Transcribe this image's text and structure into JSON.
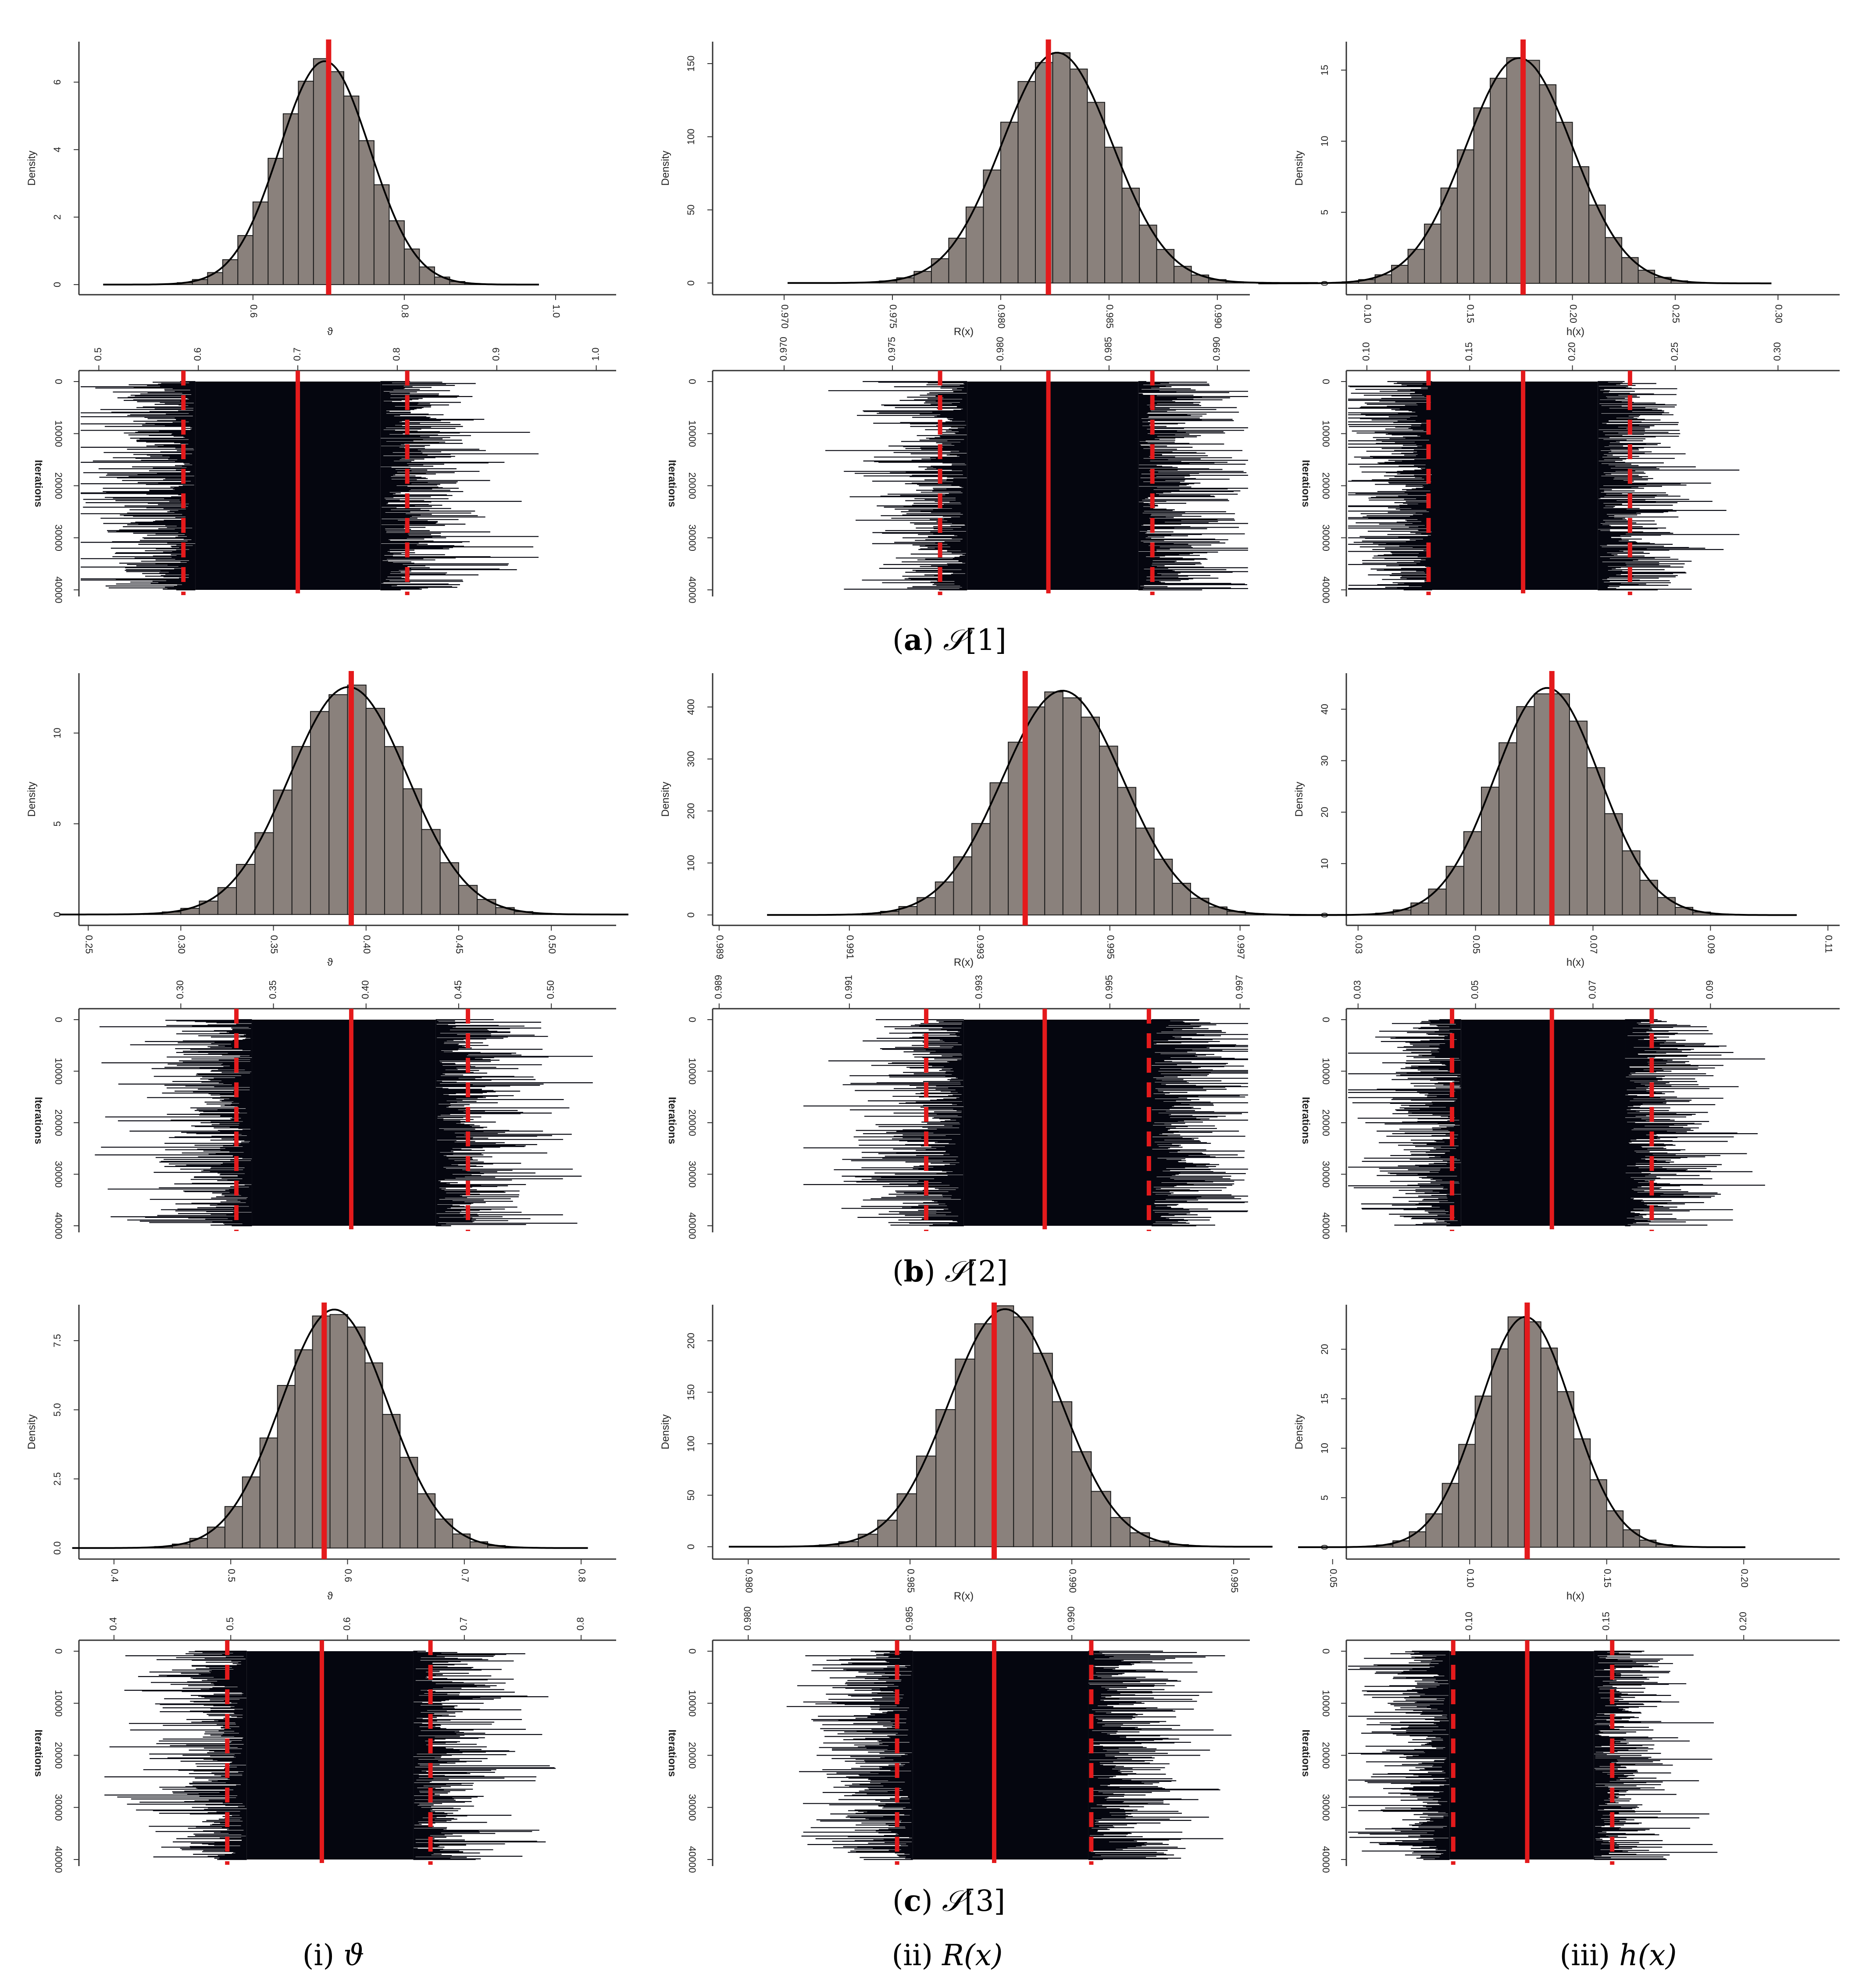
{
  "colors": {
    "bar_fill": "#8a817c",
    "bar_stroke": "#1a1a1a",
    "density_line": "#000000",
    "estimate_line": "#e41a1c",
    "trace_fill": "#05060f"
  },
  "row_captions": [
    {
      "letter": "a",
      "symbol": "𝒮",
      "index": "[1]"
    },
    {
      "letter": "b",
      "symbol": "𝒮",
      "index": "[2]"
    },
    {
      "letter": "c",
      "symbol": "𝒮",
      "index": "[3]"
    }
  ],
  "column_captions": [
    {
      "roman": "i",
      "symbol": "ϑ"
    },
    {
      "roman": "ii",
      "symbol": "R(x)"
    },
    {
      "roman": "iii",
      "symbol": "h(x)"
    }
  ],
  "chart_data": [
    {
      "panel": "a-i",
      "type": "bar",
      "histogram_with_density": true,
      "xlabel": "ϑ",
      "ylabel": "Density",
      "xlim": [
        0.37,
        1.08
      ],
      "ylim": [
        -0.3,
        7.2
      ],
      "xticks": [
        0.6,
        0.8,
        1.0
      ],
      "xtick_labels": [
        "0.6",
        "0.8",
        "1.0"
      ],
      "yticks": [
        0,
        2,
        4,
        6
      ],
      "ytick_labels": [
        "0",
        "2",
        "4",
        "6"
      ],
      "mean": 0.69,
      "sd": 0.06,
      "peak": 6.6,
      "bin_width": 0.02,
      "estimate": 0.7,
      "trace": {
        "xlim": [
          0.48,
          1.02
        ],
        "xticks": [
          0.5,
          0.6,
          0.7,
          0.8,
          0.9,
          1.0
        ],
        "xtick_labels": [
          "0.5",
          "0.6",
          "0.7",
          "0.8",
          "0.9",
          "1.0"
        ],
        "ylabel": "Iterations",
        "ylim": [
          0,
          40000
        ],
        "yticks": [
          0,
          10000,
          20000,
          30000,
          40000
        ],
        "ytick_labels": [
          "0",
          "10000",
          "20000",
          "30000",
          "40000"
        ],
        "estimate": 0.7,
        "lower": 0.585,
        "upper": 0.81
      }
    },
    {
      "panel": "a-ii",
      "type": "bar",
      "histogram_with_density": true,
      "xlabel": "R(x)",
      "ylabel": "Density",
      "xlim": [
        0.9667,
        0.9915
      ],
      "ylim": [
        -8,
        165
      ],
      "xticks": [
        0.97,
        0.975,
        0.98,
        0.985,
        0.99
      ],
      "xtick_labels": [
        "0.970",
        "0.975",
        "0.980",
        "0.985",
        "0.990"
      ],
      "yticks": [
        0,
        50,
        100,
        150
      ],
      "ytick_labels": [
        "0",
        "50",
        "100",
        "150"
      ],
      "mean": 0.9824,
      "sd": 0.00255,
      "peak": 157,
      "bin_width": 0.0008,
      "estimate": 0.9822,
      "trace": {
        "xlim": [
          0.9667,
          0.9915
        ],
        "xticks": [
          0.97,
          0.975,
          0.98,
          0.985,
          0.99
        ],
        "xtick_labels": [
          "0.970",
          "0.975",
          "0.980",
          "0.985",
          "0.990"
        ],
        "ylabel": "Iterations",
        "ylim": [
          0,
          40000
        ],
        "yticks": [
          0,
          10000,
          20000,
          30000,
          40000
        ],
        "ytick_labels": [
          "0",
          "10000",
          "20000",
          "30000",
          "40000"
        ],
        "estimate": 0.9822,
        "lower": 0.9772,
        "upper": 0.987
      }
    },
    {
      "panel": "a-iii",
      "type": "bar",
      "histogram_with_density": true,
      "xlabel": "h(x)",
      "ylabel": "Density",
      "xlim": [
        0.09,
        0.33
      ],
      "ylim": [
        -0.8,
        17
      ],
      "xticks": [
        0.1,
        0.15,
        0.2,
        0.25,
        0.3
      ],
      "xtick_labels": [
        "0.10",
        "0.15",
        "0.20",
        "0.25",
        "0.30"
      ],
      "yticks": [
        0,
        5,
        10,
        15
      ],
      "ytick_labels": [
        "0",
        "5",
        "10",
        "15"
      ],
      "mean": 0.172,
      "sd": 0.026,
      "peak": 15.8,
      "bin_width": 0.008,
      "estimate": 0.176,
      "trace": {
        "xlim": [
          0.09,
          0.33
        ],
        "xticks": [
          0.1,
          0.15,
          0.2,
          0.25,
          0.3
        ],
        "xtick_labels": [
          "0.10",
          "0.15",
          "0.20",
          "0.25",
          "0.30"
        ],
        "ylabel": "Iterations",
        "ylim": [
          0,
          40000
        ],
        "yticks": [
          0,
          10000,
          20000,
          30000,
          40000
        ],
        "ytick_labels": [
          "0",
          "10000",
          "20000",
          "30000",
          "40000"
        ],
        "estimate": 0.176,
        "lower": 0.13,
        "upper": 0.228
      }
    },
    {
      "panel": "b-i",
      "type": "bar",
      "histogram_with_density": true,
      "xlabel": "ϑ",
      "ylabel": "Density",
      "xlim": [
        0.245,
        0.535
      ],
      "ylim": [
        -0.6,
        13.3
      ],
      "xticks": [
        0.25,
        0.3,
        0.35,
        0.4,
        0.45,
        0.5
      ],
      "xtick_labels": [
        "0.25",
        "0.30",
        "0.35",
        "0.40",
        "0.45",
        "0.50"
      ],
      "yticks": [
        0,
        5,
        10
      ],
      "ytick_labels": [
        "0",
        "5",
        "10"
      ],
      "mean": 0.388,
      "sd": 0.032,
      "peak": 12.5,
      "bin_width": 0.01,
      "estimate": 0.392,
      "trace": {
        "xlim": [
          0.245,
          0.535
        ],
        "xticks": [
          0.3,
          0.35,
          0.4,
          0.45,
          0.5
        ],
        "xtick_labels": [
          "0.30",
          "0.35",
          "0.40",
          "0.45",
          "0.50"
        ],
        "ylabel": "Iterations",
        "ylim": [
          0,
          40000
        ],
        "yticks": [
          0,
          10000,
          20000,
          30000,
          40000
        ],
        "ytick_labels": [
          "0",
          "10000",
          "20000",
          "30000",
          "40000"
        ],
        "estimate": 0.392,
        "lower": 0.33,
        "upper": 0.455
      }
    },
    {
      "panel": "b-ii",
      "type": "bar",
      "histogram_with_density": true,
      "xlabel": "R(x)",
      "ylabel": "Density",
      "xlim": [
        0.9889,
        0.99715
      ],
      "ylim": [
        -20,
        465
      ],
      "xticks": [
        0.989,
        0.991,
        0.993,
        0.995,
        0.997
      ],
      "xtick_labels": [
        "0.989",
        "0.991",
        "0.993",
        "0.995",
        "0.997"
      ],
      "yticks": [
        0,
        100,
        200,
        300,
        400
      ],
      "ytick_labels": [
        "0",
        "100",
        "200",
        "300",
        "400"
      ],
      "mean": 0.9942,
      "sd": 0.00093,
      "peak": 430,
      "bin_width": 0.00028,
      "estimate": 0.9937,
      "trace": {
        "xlim": [
          0.9889,
          0.99715
        ],
        "xticks": [
          0.989,
          0.991,
          0.993,
          0.995,
          0.997
        ],
        "xtick_labels": [
          "0.989",
          "0.991",
          "0.993",
          "0.995",
          "0.997"
        ],
        "ylabel": "Iterations",
        "ylim": [
          0,
          40000
        ],
        "yticks": [
          0,
          10000,
          20000,
          30000,
          40000
        ],
        "ytick_labels": [
          "0",
          "10000",
          "20000",
          "30000",
          "40000"
        ],
        "estimate": 0.994,
        "lower": 0.99218,
        "upper": 0.9956
      }
    },
    {
      "panel": "b-iii",
      "type": "bar",
      "histogram_with_density": true,
      "xlabel": "h(x)",
      "ylabel": "Density",
      "xlim": [
        0.028,
        0.112
      ],
      "ylim": [
        -2,
        47
      ],
      "xticks": [
        0.03,
        0.05,
        0.07,
        0.09,
        0.11
      ],
      "xtick_labels": [
        "0.03",
        "0.05",
        "0.07",
        "0.09",
        "0.11"
      ],
      "yticks": [
        0,
        10,
        20,
        30,
        40
      ],
      "ytick_labels": [
        "0",
        "10",
        "20",
        "30",
        "40"
      ],
      "mean": 0.0615,
      "sd": 0.009,
      "peak": 44,
      "bin_width": 0.003,
      "estimate": 0.063,
      "trace": {
        "xlim": [
          0.028,
          0.112
        ],
        "xticks": [
          0.03,
          0.05,
          0.07,
          0.09
        ],
        "xtick_labels": [
          "0.03",
          "0.05",
          "0.07",
          "0.09"
        ],
        "ylabel": "Iterations",
        "ylim": [
          0,
          40000
        ],
        "yticks": [
          0,
          10000,
          20000,
          30000,
          40000
        ],
        "ytick_labels": [
          "0",
          "10000",
          "20000",
          "30000",
          "40000"
        ],
        "estimate": 0.063,
        "lower": 0.046,
        "upper": 0.08
      }
    },
    {
      "panel": "c-i",
      "type": "bar",
      "histogram_with_density": true,
      "xlabel": "ϑ",
      "ylabel": "Density",
      "xlim": [
        0.37,
        0.83
      ],
      "ylim": [
        -0.4,
        8.8
      ],
      "xticks": [
        0.4,
        0.5,
        0.6,
        0.7,
        0.8
      ],
      "xtick_labels": [
        "0.4",
        "0.5",
        "0.6",
        "0.7",
        "0.8"
      ],
      "yticks": [
        0,
        2.5,
        5,
        7.5
      ],
      "ytick_labels": [
        "0.0",
        "2.5",
        "5.0",
        "7.5"
      ],
      "mean": 0.585,
      "sd": 0.046,
      "peak": 8.6,
      "bin_width": 0.015,
      "estimate": 0.58,
      "trace": {
        "xlim": [
          0.37,
          0.83
        ],
        "xticks": [
          0.4,
          0.5,
          0.6,
          0.7,
          0.8
        ],
        "xtick_labels": [
          "0.4",
          "0.5",
          "0.6",
          "0.7",
          "0.8"
        ],
        "ylabel": "Iterations",
        "ylim": [
          0,
          40000
        ],
        "yticks": [
          0,
          10000,
          20000,
          30000,
          40000
        ],
        "ytick_labels": [
          "0",
          "10000",
          "20000",
          "30000",
          "40000"
        ],
        "estimate": 0.578,
        "lower": 0.497,
        "upper": 0.671
      }
    },
    {
      "panel": "c-ii",
      "type": "bar",
      "histogram_with_density": true,
      "xlabel": "R(x)",
      "ylabel": "Density",
      "xlim": [
        0.9789,
        0.9955
      ],
      "ylim": [
        -12,
        235
      ],
      "xticks": [
        0.98,
        0.985,
        0.99,
        0.995
      ],
      "xtick_labels": [
        "0.980",
        "0.985",
        "0.990",
        "0.995"
      ],
      "yticks": [
        0,
        50,
        100,
        150,
        200
      ],
      "ytick_labels": [
        "0",
        "50",
        "100",
        "150",
        "200"
      ],
      "mean": 0.9878,
      "sd": 0.00175,
      "peak": 230,
      "bin_width": 0.0006,
      "estimate": 0.9876,
      "trace": {
        "xlim": [
          0.9789,
          0.9955
        ],
        "xticks": [
          0.98,
          0.985,
          0.99
        ],
        "xtick_labels": [
          "0.980",
          "0.985",
          "0.990"
        ],
        "ylabel": "Iterations",
        "ylim": [
          0,
          40000
        ],
        "yticks": [
          0,
          10000,
          20000,
          30000,
          40000
        ],
        "ytick_labels": [
          "0",
          "10000",
          "20000",
          "30000",
          "40000"
        ],
        "estimate": 0.9876,
        "lower": 0.9846,
        "upper": 0.9906
      }
    },
    {
      "panel": "c-iii",
      "type": "bar",
      "histogram_with_density": true,
      "xlabel": "h(x)",
      "ylabel": "Density",
      "xlim": [
        0.055,
        0.235
      ],
      "ylim": [
        -1.2,
        24.5
      ],
      "xticks": [
        0.05,
        0.1,
        0.15,
        0.2
      ],
      "xtick_labels": [
        "0.05",
        "0.10",
        "0.15",
        "0.20"
      ],
      "yticks": [
        0,
        5,
        10,
        15,
        20
      ],
      "ytick_labels": [
        "0",
        "5",
        "10",
        "15",
        "20"
      ],
      "mean": 0.119,
      "sd": 0.017,
      "peak": 23.2,
      "bin_width": 0.006,
      "estimate": 0.121,
      "trace": {
        "xlim": [
          0.055,
          0.235
        ],
        "xticks": [
          0.1,
          0.15,
          0.2
        ],
        "xtick_labels": [
          "0.10",
          "0.15",
          "0.20"
        ],
        "ylabel": "Iterations",
        "ylim": [
          0,
          40000
        ],
        "yticks": [
          0,
          10000,
          20000,
          30000,
          40000
        ],
        "ytick_labels": [
          "0",
          "10000",
          "20000",
          "30000",
          "40000"
        ],
        "estimate": 0.121,
        "lower": 0.094,
        "upper": 0.152
      }
    }
  ]
}
